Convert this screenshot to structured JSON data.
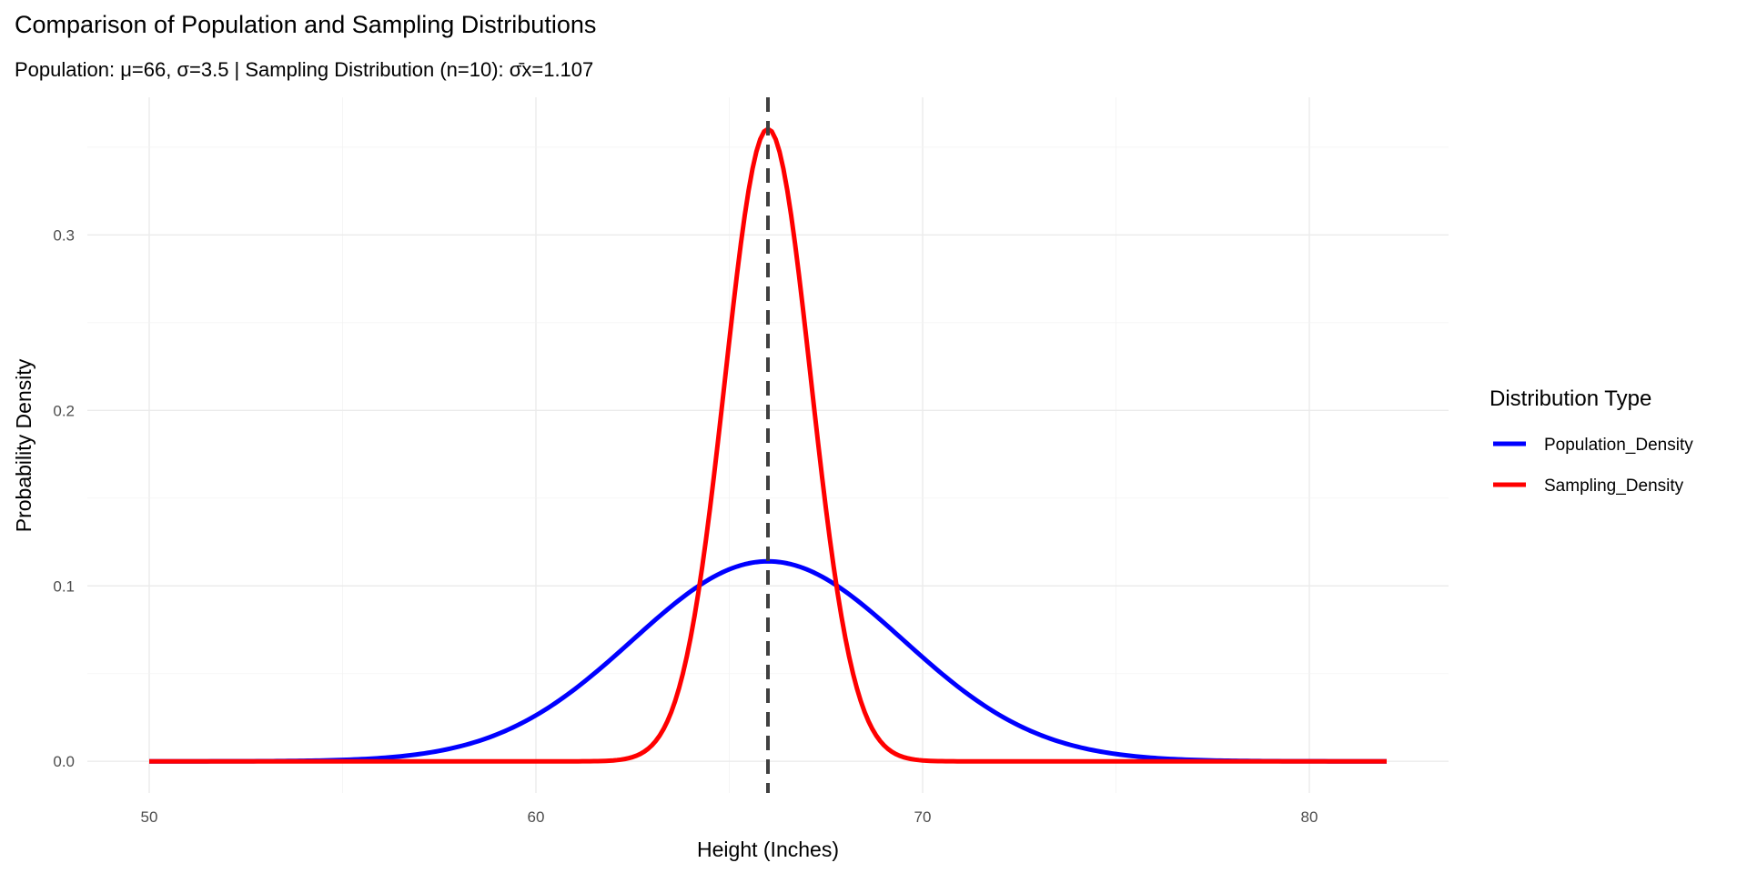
{
  "chart_data": {
    "type": "line",
    "title": "Comparison of Population and Sampling Distributions",
    "subtitle": "Population: μ=66, σ=3.5 | Sampling Distribution (n=10): σ̄x=1.107",
    "xlabel": "Height (Inches)",
    "ylabel": "Probability Density",
    "xlim": [
      50,
      82
    ],
    "ylim": [
      0,
      0.3604
    ],
    "x_step": 0.1,
    "x_ticks": [
      50,
      60,
      70,
      80
    ],
    "x_tick_labels": [
      "50",
      "60",
      "70",
      "80"
    ],
    "y_ticks": [
      0,
      0.1,
      0.2,
      0.3
    ],
    "y_tick_labels": [
      "0.0",
      "0.1",
      "0.2",
      "0.3"
    ],
    "grid": true,
    "legend": {
      "title": "Distribution Type",
      "placement": "right",
      "entries": [
        "Population_Density",
        "Sampling_Density"
      ]
    },
    "series": [
      {
        "name": "Population_Density",
        "distribution": "normal",
        "mean": 66,
        "sd": 3.5,
        "color": "#0000ff"
      },
      {
        "name": "Sampling_Density",
        "distribution": "normal",
        "mean": 66,
        "sd": 1.107,
        "color": "#ff0000"
      }
    ],
    "vline": {
      "x": 66,
      "style": "dashed",
      "color": "#404040"
    }
  }
}
